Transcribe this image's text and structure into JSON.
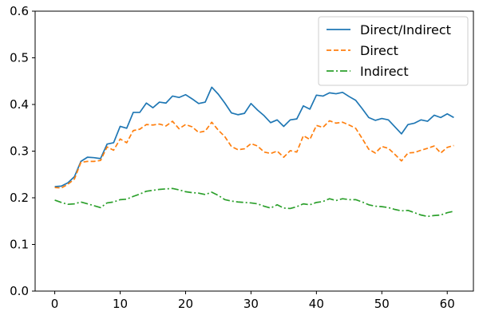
{
  "chart_data": {
    "type": "line",
    "title": "",
    "xlabel": "",
    "ylabel": "",
    "xlim": [
      -3,
      64
    ],
    "ylim": [
      0,
      0.6
    ],
    "xticks": [
      0,
      10,
      20,
      30,
      40,
      50,
      60
    ],
    "yticks": [
      0.0,
      0.1,
      0.2,
      0.3,
      0.4,
      0.5,
      0.6
    ],
    "ytick_labels": [
      "0.0",
      "0.1",
      "0.2",
      "0.3",
      "0.4",
      "0.5",
      "0.6"
    ],
    "legend_position": "top-right",
    "grid": false,
    "x": [
      0,
      1,
      2,
      3,
      4,
      5,
      6,
      7,
      8,
      9,
      10,
      11,
      12,
      13,
      14,
      15,
      16,
      17,
      18,
      19,
      20,
      21,
      22,
      23,
      24,
      25,
      26,
      27,
      28,
      29,
      30,
      31,
      32,
      33,
      34,
      35,
      36,
      37,
      38,
      39,
      40,
      41,
      42,
      43,
      44,
      45,
      46,
      47,
      48,
      49,
      50,
      51,
      52,
      53,
      54,
      55,
      56,
      57,
      58,
      59,
      60,
      61
    ],
    "series": [
      {
        "name": "Direct/Indirect",
        "color": "#1f77b4",
        "dash": "solid",
        "values": [
          0.224,
          0.225,
          0.232,
          0.245,
          0.278,
          0.287,
          0.286,
          0.284,
          0.315,
          0.318,
          0.353,
          0.349,
          0.383,
          0.383,
          0.403,
          0.393,
          0.405,
          0.403,
          0.418,
          0.415,
          0.421,
          0.412,
          0.402,
          0.405,
          0.437,
          0.422,
          0.403,
          0.382,
          0.378,
          0.381,
          0.402,
          0.388,
          0.376,
          0.361,
          0.367,
          0.353,
          0.367,
          0.369,
          0.397,
          0.39,
          0.42,
          0.418,
          0.425,
          0.423,
          0.426,
          0.417,
          0.409,
          0.391,
          0.372,
          0.366,
          0.37,
          0.367,
          0.352,
          0.337,
          0.357,
          0.36,
          0.367,
          0.364,
          0.377,
          0.372,
          0.38,
          0.372
        ]
      },
      {
        "name": "Direct",
        "color": "#ff7f0e",
        "dash": "dashed",
        "values": [
          0.222,
          0.221,
          0.229,
          0.24,
          0.276,
          0.278,
          0.278,
          0.28,
          0.309,
          0.302,
          0.326,
          0.318,
          0.344,
          0.347,
          0.357,
          0.356,
          0.358,
          0.354,
          0.364,
          0.348,
          0.357,
          0.352,
          0.34,
          0.343,
          0.362,
          0.345,
          0.331,
          0.31,
          0.303,
          0.305,
          0.316,
          0.311,
          0.298,
          0.295,
          0.3,
          0.287,
          0.301,
          0.298,
          0.333,
          0.325,
          0.355,
          0.351,
          0.365,
          0.36,
          0.362,
          0.356,
          0.349,
          0.327,
          0.304,
          0.296,
          0.31,
          0.306,
          0.293,
          0.279,
          0.296,
          0.297,
          0.302,
          0.306,
          0.311,
          0.296,
          0.308,
          0.312
        ]
      },
      {
        "name": "Indirect",
        "color": "#2ca02c",
        "dash": "dashdot",
        "values": [
          0.195,
          0.19,
          0.186,
          0.187,
          0.191,
          0.187,
          0.183,
          0.179,
          0.189,
          0.191,
          0.196,
          0.197,
          0.203,
          0.208,
          0.214,
          0.216,
          0.218,
          0.219,
          0.22,
          0.217,
          0.213,
          0.211,
          0.21,
          0.207,
          0.212,
          0.205,
          0.196,
          0.193,
          0.191,
          0.19,
          0.189,
          0.187,
          0.182,
          0.178,
          0.185,
          0.178,
          0.177,
          0.181,
          0.187,
          0.185,
          0.19,
          0.192,
          0.198,
          0.194,
          0.198,
          0.196,
          0.196,
          0.191,
          0.185,
          0.182,
          0.181,
          0.179,
          0.175,
          0.172,
          0.173,
          0.168,
          0.163,
          0.16,
          0.162,
          0.163,
          0.168,
          0.171
        ]
      }
    ]
  }
}
